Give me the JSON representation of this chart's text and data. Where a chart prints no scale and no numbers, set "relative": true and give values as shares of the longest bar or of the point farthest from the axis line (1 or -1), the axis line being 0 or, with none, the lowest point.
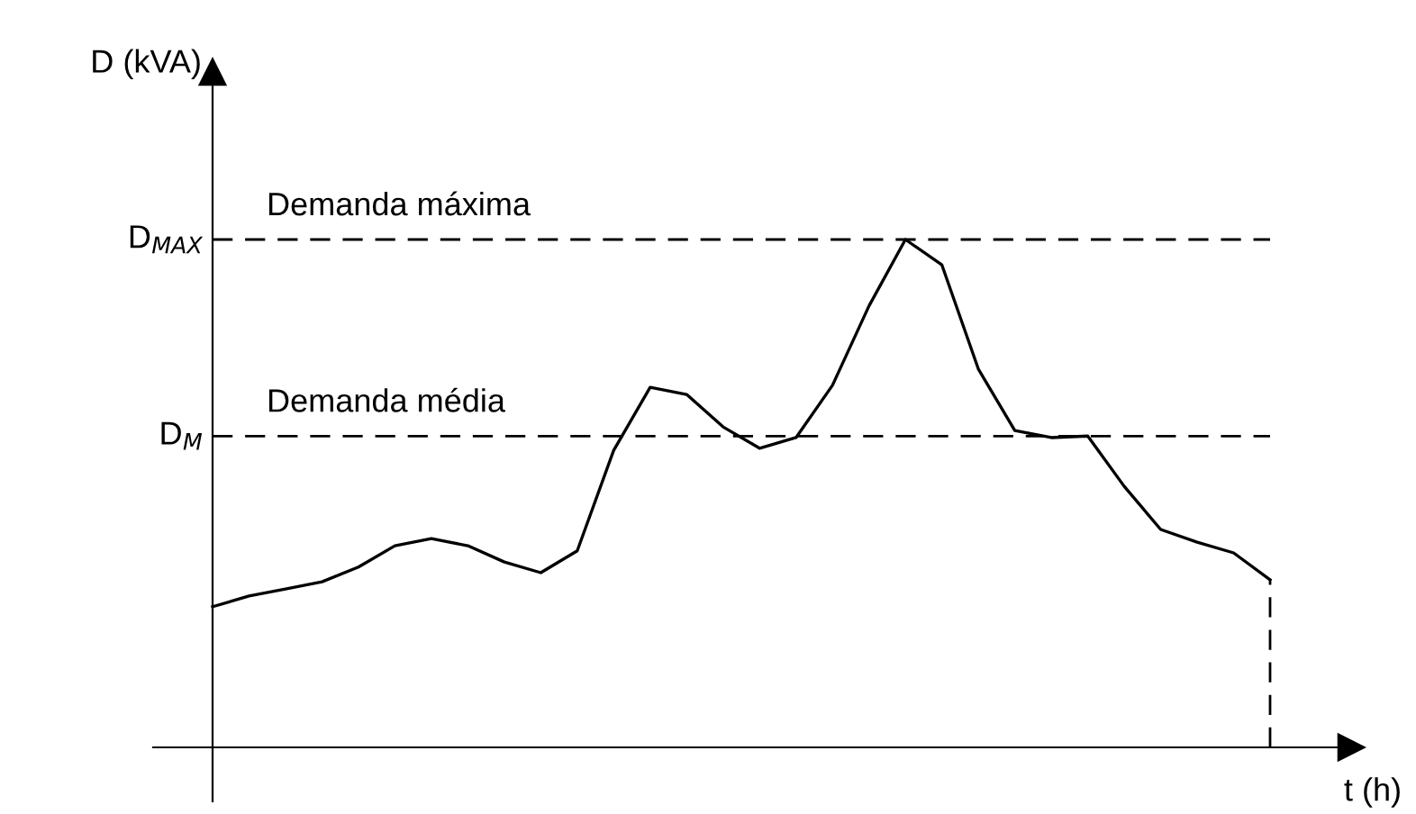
{
  "chart_data": {
    "type": "line",
    "relative": true,
    "xlabel": "t (h)",
    "ylabel": "D (kVA)",
    "categories": [
      null,
      null,
      null,
      null,
      null,
      null,
      null,
      null,
      null,
      null,
      null,
      null,
      null,
      null,
      null,
      null,
      null,
      null,
      null,
      null,
      null,
      null,
      null,
      null,
      null,
      null,
      null,
      null,
      null,
      null
    ],
    "series": [
      {
        "color": "#000000",
        "values": [
          0.277,
          0.298,
          0.312,
          0.326,
          0.355,
          0.397,
          0.411,
          0.397,
          0.365,
          0.344,
          0.387,
          0.585,
          0.709,
          0.695,
          0.631,
          0.589,
          0.61,
          0.713,
          0.869,
          1.0,
          0.95,
          0.745,
          0.624,
          0.61,
          0.613,
          0.514,
          0.429,
          0.404,
          0.383,
          0.33
        ]
      }
    ],
    "ref_lines": [
      {
        "axis": "y",
        "value": 1.0,
        "label": "D$_{MAX}$",
        "line_style": "dashed",
        "color": "#000000"
      },
      {
        "axis": "y",
        "value": 0.613,
        "label": "D$_{M}$",
        "line_style": "dashed",
        "color": "#000000"
      }
    ],
    "annotations": [
      {
        "text": "Demanda máxima",
        "y": 1.0
      },
      {
        "text": "Demanda média",
        "y": 0.613
      }
    ],
    "legend": false,
    "marker": "none",
    "line_style": "solid"
  }
}
